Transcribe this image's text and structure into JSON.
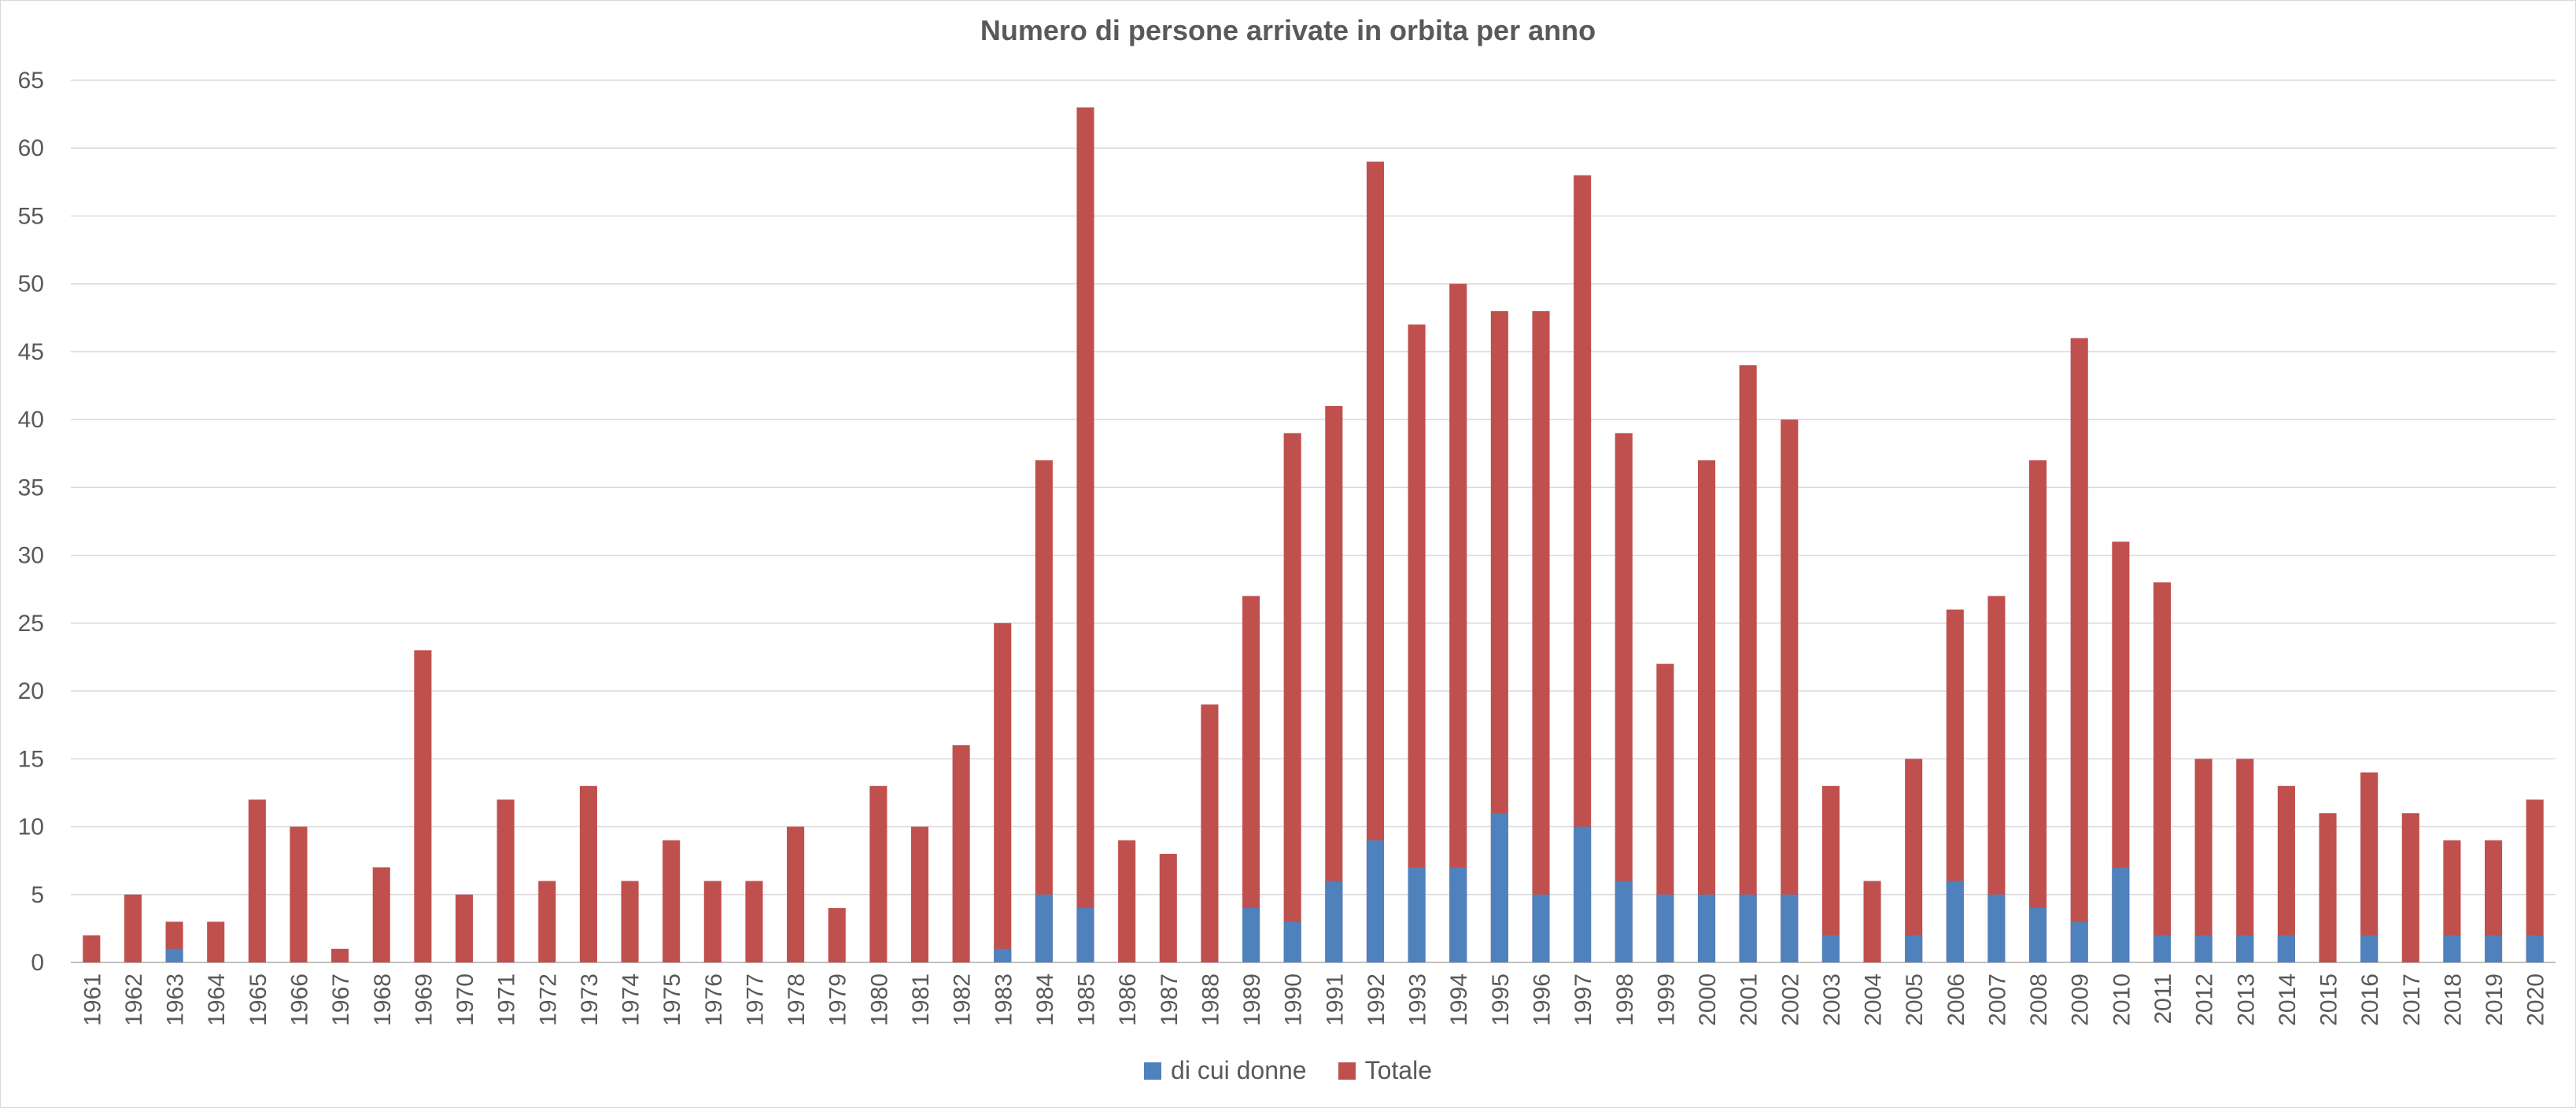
{
  "chart_data": {
    "type": "bar",
    "stacked": true,
    "title": "Numero di persone arrivate in orbita per anno",
    "xlabel": "",
    "ylabel": "",
    "ylim": [
      0,
      65
    ],
    "y_ticks": [
      0,
      5,
      10,
      15,
      20,
      25,
      30,
      35,
      40,
      45,
      50,
      55,
      60,
      65
    ],
    "grid": true,
    "legend_position": "bottom",
    "categories": [
      "1961",
      "1962",
      "1963",
      "1964",
      "1965",
      "1966",
      "1967",
      "1968",
      "1969",
      "1970",
      "1971",
      "1972",
      "1973",
      "1974",
      "1975",
      "1976",
      "1977",
      "1978",
      "1979",
      "1980",
      "1981",
      "1982",
      "1983",
      "1984",
      "1985",
      "1986",
      "1987",
      "1988",
      "1989",
      "1990",
      "1991",
      "1992",
      "1993",
      "1994",
      "1995",
      "1996",
      "1997",
      "1998",
      "1999",
      "2000",
      "2001",
      "2002",
      "2003",
      "2004",
      "2005",
      "2006",
      "2007",
      "2008",
      "2009",
      "2010",
      "2011",
      "2012",
      "2013",
      "2014",
      "2015",
      "2016",
      "2017",
      "2018",
      "2019",
      "2020"
    ],
    "series": [
      {
        "name": "di cui donne",
        "color": "#4f81bd",
        "values": [
          0,
          0,
          1,
          0,
          0,
          0,
          0,
          0,
          0,
          0,
          0,
          0,
          0,
          0,
          0,
          0,
          0,
          0,
          0,
          0,
          0,
          0,
          1,
          5,
          4,
          0,
          0,
          0,
          4,
          3,
          6,
          9,
          7,
          7,
          11,
          5,
          10,
          6,
          5,
          5,
          5,
          5,
          2,
          0,
          2,
          6,
          5,
          4,
          3,
          7,
          2,
          2,
          2,
          2,
          0,
          2,
          0,
          2,
          2,
          2
        ]
      },
      {
        "name": "Totale",
        "color": "#c0504d",
        "values": [
          2,
          5,
          3,
          3,
          12,
          10,
          1,
          7,
          23,
          5,
          12,
          6,
          13,
          6,
          9,
          6,
          6,
          10,
          4,
          13,
          10,
          16,
          25,
          37,
          63,
          9,
          8,
          19,
          27,
          39,
          41,
          59,
          47,
          50,
          48,
          48,
          58,
          39,
          22,
          37,
          44,
          40,
          13,
          6,
          15,
          26,
          27,
          37,
          46,
          31,
          28,
          15,
          15,
          13,
          11,
          14,
          11,
          9,
          9,
          12
        ]
      }
    ]
  }
}
